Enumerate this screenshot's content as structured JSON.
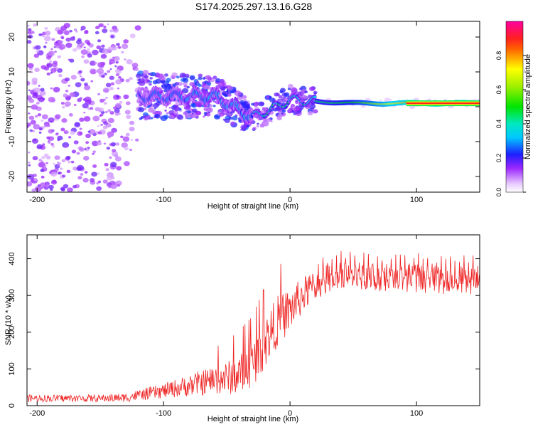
{
  "title": "S174.2025.297.13.16.G28",
  "chart_data": [
    {
      "type": "heatmap",
      "title": "S174.2025.297.13.16.G28",
      "xlabel": "Height of straight line (km)",
      "ylabel": "Frequency (Hz)",
      "xlim": [
        -208,
        150
      ],
      "ylim": [
        -24.5,
        24.5
      ],
      "xticks": [
        -200,
        -100,
        0,
        100
      ],
      "xtick_labels": [
        "-200",
        "-100",
        "0",
        "100"
      ],
      "yticks": [
        -20,
        -10,
        0,
        10,
        20
      ],
      "ytick_labels": [
        "-20",
        "-10",
        "0",
        "10",
        "20"
      ],
      "colorbar": {
        "label": "Normalized spectral amplitude",
        "range": [
          0,
          1
        ],
        "ticks": [
          0.0,
          0.2,
          0.4,
          0.6,
          0.8
        ],
        "tick_labels": [
          "0.0",
          "0.2",
          "0.4",
          "0.6",
          "0.8"
        ],
        "colormap": [
          "#ffffff",
          "#9c27ff",
          "#1e1eff",
          "#00e5ff",
          "#00e400",
          "#ffff00",
          "#ff2020",
          "#ff00a0"
        ]
      },
      "description_points": [
        {
          "x": -200,
          "f": 0,
          "amp": 0.15
        },
        {
          "x": -120,
          "f": 3,
          "amp": 0.25
        },
        {
          "x": -60,
          "f": 3,
          "amp": 0.3
        },
        {
          "x": -30,
          "f": -3,
          "amp": 0.3
        },
        {
          "x": -10,
          "f": 0,
          "amp": 0.5
        },
        {
          "x": 0,
          "f": 2,
          "amp": 0.4
        },
        {
          "x": 50,
          "f": 1,
          "amp": 0.5
        },
        {
          "x": 100,
          "f": 1,
          "amp": 0.85
        },
        {
          "x": 150,
          "f": 1,
          "amp": 0.9
        }
      ]
    },
    {
      "type": "line",
      "xlabel": "Height of straight line (km)",
      "ylabel": "SNR (10 * v/v)",
      "xlim": [
        -208,
        150
      ],
      "ylim": [
        0,
        465
      ],
      "xticks": [
        -200,
        -100,
        0,
        100
      ],
      "xtick_labels": [
        "-200",
        "-100",
        "0",
        "100"
      ],
      "yticks": [
        0,
        100,
        200,
        300,
        400
      ],
      "ytick_labels": [
        "0",
        "100",
        "200",
        "300",
        "400"
      ],
      "color": "#ee2222",
      "series": [
        {
          "name": "SNR",
          "x": [
            -208,
            -180,
            -150,
            -130,
            -120,
            -100,
            -80,
            -60,
            -50,
            -40,
            -30,
            -20,
            -10,
            0,
            10,
            20,
            30,
            40,
            60,
            80,
            100,
            120,
            150
          ],
          "values": [
            20,
            20,
            20,
            22,
            28,
            40,
            55,
            70,
            75,
            85,
            110,
            170,
            230,
            260,
            300,
            330,
            350,
            355,
            352,
            345,
            350,
            345,
            345
          ],
          "noise_amplitude": [
            10,
            10,
            10,
            12,
            15,
            20,
            30,
            40,
            45,
            55,
            60,
            70,
            70,
            60,
            50,
            40,
            35,
            35,
            35,
            35,
            35,
            35,
            35
          ]
        }
      ]
    }
  ]
}
